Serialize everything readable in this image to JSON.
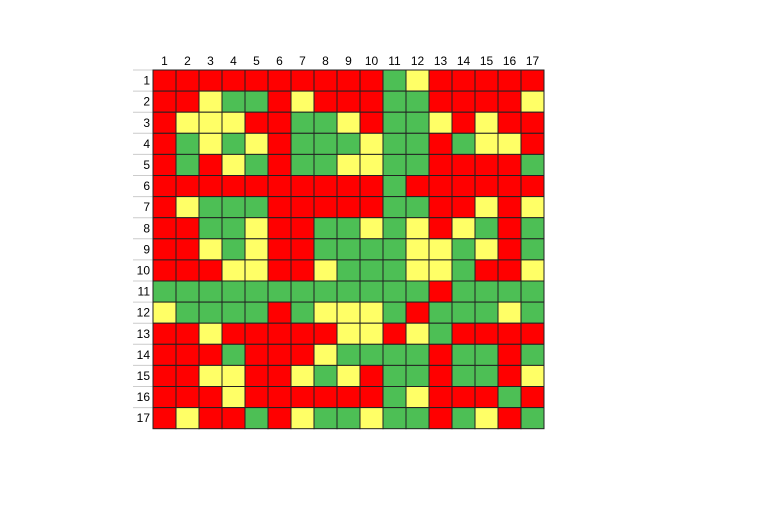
{
  "chart_data": {
    "type": "heatmap",
    "x_labels": [
      "1",
      "2",
      "3",
      "4",
      "5",
      "6",
      "7",
      "8",
      "9",
      "10",
      "11",
      "12",
      "13",
      "14",
      "15",
      "16",
      "17"
    ],
    "y_labels": [
      "1",
      "2",
      "3",
      "4",
      "5",
      "6",
      "7",
      "8",
      "9",
      "10",
      "11",
      "12",
      "13",
      "14",
      "15",
      "16",
      "17"
    ],
    "legend": {
      "R": "#ff0000",
      "Y": "#ffff66",
      "G": "#4dbf55"
    },
    "grid_color": "#222222",
    "cells": [
      [
        "R",
        "R",
        "R",
        "R",
        "R",
        "R",
        "R",
        "R",
        "R",
        "R",
        "G",
        "Y",
        "R",
        "R",
        "R",
        "R",
        "R"
      ],
      [
        "R",
        "R",
        "Y",
        "G",
        "G",
        "R",
        "Y",
        "R",
        "R",
        "R",
        "G",
        "G",
        "R",
        "R",
        "R",
        "R",
        "Y"
      ],
      [
        "R",
        "Y",
        "Y",
        "Y",
        "R",
        "R",
        "G",
        "G",
        "Y",
        "R",
        "G",
        "G",
        "Y",
        "R",
        "Y",
        "R",
        "R"
      ],
      [
        "R",
        "G",
        "Y",
        "G",
        "Y",
        "R",
        "G",
        "G",
        "G",
        "Y",
        "G",
        "G",
        "R",
        "G",
        "Y",
        "Y",
        "R"
      ],
      [
        "R",
        "G",
        "R",
        "Y",
        "G",
        "R",
        "G",
        "G",
        "Y",
        "Y",
        "G",
        "G",
        "R",
        "R",
        "R",
        "R",
        "G"
      ],
      [
        "R",
        "R",
        "R",
        "R",
        "R",
        "R",
        "R",
        "R",
        "R",
        "R",
        "G",
        "R",
        "R",
        "R",
        "R",
        "R",
        "R"
      ],
      [
        "R",
        "Y",
        "G",
        "G",
        "G",
        "R",
        "R",
        "R",
        "R",
        "R",
        "G",
        "G",
        "R",
        "R",
        "Y",
        "R",
        "Y"
      ],
      [
        "R",
        "R",
        "G",
        "G",
        "Y",
        "R",
        "R",
        "G",
        "G",
        "Y",
        "G",
        "Y",
        "R",
        "Y",
        "G",
        "R",
        "G"
      ],
      [
        "R",
        "R",
        "Y",
        "G",
        "Y",
        "R",
        "R",
        "G",
        "G",
        "G",
        "G",
        "Y",
        "Y",
        "G",
        "Y",
        "R",
        "G"
      ],
      [
        "R",
        "R",
        "R",
        "Y",
        "Y",
        "R",
        "R",
        "Y",
        "G",
        "G",
        "G",
        "Y",
        "Y",
        "G",
        "R",
        "R",
        "Y"
      ],
      [
        "G",
        "G",
        "G",
        "G",
        "G",
        "G",
        "G",
        "G",
        "G",
        "G",
        "G",
        "G",
        "R",
        "G",
        "G",
        "G",
        "G"
      ],
      [
        "Y",
        "G",
        "G",
        "G",
        "G",
        "R",
        "G",
        "Y",
        "Y",
        "Y",
        "G",
        "R",
        "G",
        "G",
        "G",
        "Y",
        "G"
      ],
      [
        "R",
        "R",
        "Y",
        "R",
        "R",
        "R",
        "R",
        "R",
        "Y",
        "Y",
        "R",
        "Y",
        "G",
        "R",
        "R",
        "R",
        "R"
      ],
      [
        "R",
        "R",
        "R",
        "G",
        "R",
        "R",
        "R",
        "Y",
        "G",
        "G",
        "G",
        "G",
        "R",
        "G",
        "G",
        "R",
        "G"
      ],
      [
        "R",
        "R",
        "Y",
        "Y",
        "R",
        "R",
        "Y",
        "G",
        "Y",
        "R",
        "G",
        "G",
        "R",
        "G",
        "G",
        "R",
        "Y"
      ],
      [
        "R",
        "R",
        "R",
        "Y",
        "R",
        "R",
        "R",
        "R",
        "R",
        "R",
        "G",
        "Y",
        "R",
        "R",
        "R",
        "G",
        "R"
      ],
      [
        "R",
        "Y",
        "R",
        "R",
        "G",
        "R",
        "Y",
        "G",
        "G",
        "Y",
        "G",
        "G",
        "R",
        "G",
        "Y",
        "R",
        "G"
      ]
    ]
  }
}
